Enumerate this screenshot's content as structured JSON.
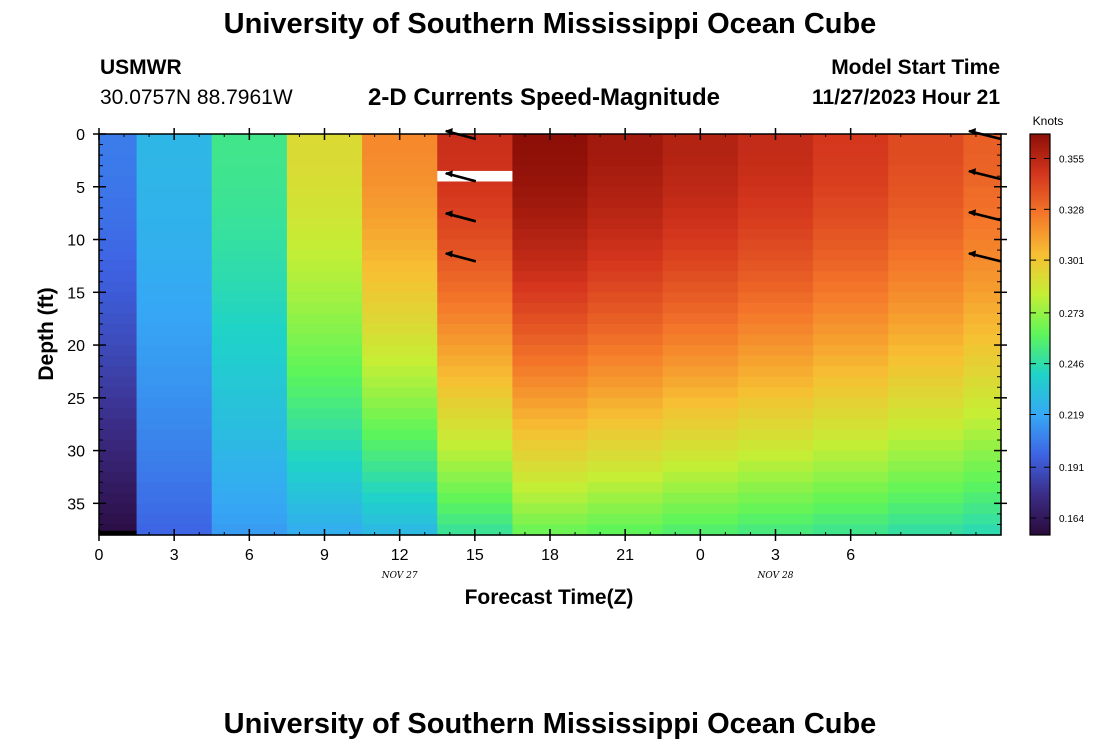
{
  "header": {
    "title": "University of Southern Mississippi Ocean Cube",
    "station_id": "USMWR",
    "coordinates": "30.0757N  88.7961W",
    "subtitle": "2-D Currents Speed-Magnitude",
    "model_start_label": "Model Start Time",
    "model_start_value": "11/27/2023 Hour 21"
  },
  "footer": {
    "title": "University of Southern Mississippi Ocean Cube"
  },
  "chart_data": {
    "type": "heatmap",
    "title": "2-D Currents Speed-Magnitude",
    "xlabel": "Forecast Time(Z)",
    "ylabel": "Depth (ft)",
    "x_tick_labels": [
      "0",
      "3",
      "6",
      "9",
      "12",
      "15",
      "18",
      "21",
      "0",
      "3",
      "6"
    ],
    "date_labels": [
      {
        "label": "NOV 27",
        "tick_index": 4
      },
      {
        "label": "NOV 28",
        "tick_index": 9
      }
    ],
    "x_range_hours": [
      0,
      36
    ],
    "y_range_ft": [
      0,
      38
    ],
    "y_ticks": [
      0,
      5,
      10,
      15,
      20,
      25,
      30,
      35
    ],
    "colorbar": {
      "label": "Knots",
      "min": 0.155,
      "max": 0.368,
      "ticks": [
        0.164,
        0.191,
        0.219,
        0.246,
        0.273,
        0.301,
        0.328,
        0.355
      ],
      "colors": [
        "#2a0a3b",
        "#3b2c86",
        "#3e64e4",
        "#36a8f5",
        "#1fd3c8",
        "#5df55a",
        "#c5ee35",
        "#f7bf33",
        "#f4772a",
        "#d4351d",
        "#8d0f07"
      ]
    },
    "columns": [
      {
        "x_start": 0.0,
        "x_end": 1.5,
        "top": 0.205,
        "bottom": 0.158
      },
      {
        "x_start": 1.5,
        "x_end": 4.5,
        "top": 0.226,
        "bottom": 0.198
      },
      {
        "x_start": 4.5,
        "x_end": 7.5,
        "top": 0.252,
        "bottom": 0.215
      },
      {
        "x_start": 7.5,
        "x_end": 10.5,
        "top": 0.292,
        "bottom": 0.222
      },
      {
        "x_start": 10.5,
        "x_end": 13.5,
        "top": 0.32,
        "bottom": 0.228
      },
      {
        "x_start": 13.5,
        "x_end": 16.5,
        "top": 0.35,
        "bottom": 0.25
      },
      {
        "x_start": 16.5,
        "x_end": 19.5,
        "top": 0.368,
        "bottom": 0.265
      },
      {
        "x_start": 19.5,
        "x_end": 22.5,
        "top": 0.362,
        "bottom": 0.262
      },
      {
        "x_start": 22.5,
        "x_end": 25.5,
        "top": 0.357,
        "bottom": 0.258
      },
      {
        "x_start": 25.5,
        "x_end": 28.5,
        "top": 0.352,
        "bottom": 0.255
      },
      {
        "x_start": 28.5,
        "x_end": 31.5,
        "top": 0.346,
        "bottom": 0.252
      },
      {
        "x_start": 31.5,
        "x_end": 34.5,
        "top": 0.34,
        "bottom": 0.248
      },
      {
        "x_start": 34.5,
        "x_end": 36.0,
        "top": 0.333,
        "bottom": 0.245
      }
    ],
    "missing_data": [
      {
        "x_start": 13.5,
        "x_end": 16.5,
        "depth_top": 3.5,
        "depth_bottom": 4.5
      },
      {
        "x_start": 0.0,
        "x_end": 1.5,
        "depth_top": 37.6,
        "depth_bottom": 38.0
      }
    ],
    "vectors": [
      {
        "hour": 15,
        "depth": 0.0
      },
      {
        "hour": 15,
        "depth": 4.0
      },
      {
        "hour": 15,
        "depth": 7.8
      },
      {
        "hour": 15,
        "depth": 11.6
      },
      {
        "hour": 36,
        "depth": 0.0
      },
      {
        "hour": 36,
        "depth": 3.8
      },
      {
        "hour": 36,
        "depth": 7.7
      },
      {
        "hour": 36,
        "depth": 11.6
      }
    ],
    "vector_direction_deg": 170
  }
}
